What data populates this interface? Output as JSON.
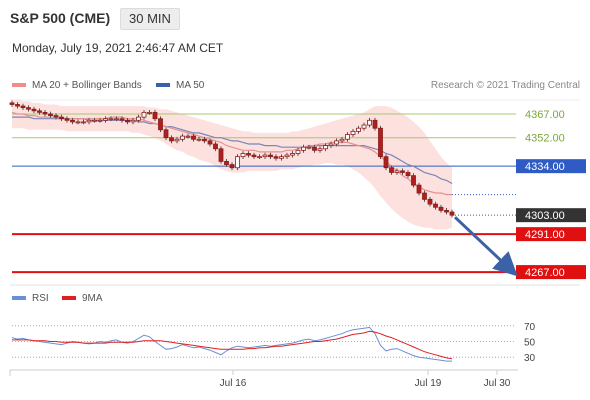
{
  "header": {
    "title": "S&P 500 (CME)",
    "timeframe": "30 MIN",
    "datetime": "Monday, July 19, 2021 2:46:47 AM CET"
  },
  "legend": {
    "ma20_label": "MA 20 + Bollinger Bands",
    "ma50_label": "MA 50",
    "ma20_color": "#f28c8c",
    "ma50_color": "#3b5fa8",
    "copyright": "Research © 2021 Trading Central"
  },
  "rsi_legend": {
    "rsi_label": "RSI",
    "ma9_label": "9MA",
    "rsi_color": "#6b8fd6",
    "ma9_color": "#e02020"
  },
  "chart_data": [
    {
      "type": "candlestick",
      "title": "S&P 500 (CME)",
      "ylim": [
        4262,
        4379
      ],
      "levels": [
        {
          "label": "4367.00",
          "value": 4367,
          "color": "#a8c870",
          "kind": "resistance"
        },
        {
          "label": "4352.00",
          "value": 4352,
          "color": "#a8c870",
          "kind": "resistance"
        },
        {
          "label": "4334.00",
          "value": 4334,
          "color": "#2e5cc4",
          "kind": "pivot"
        },
        {
          "label": "4303.00",
          "value": 4303,
          "color": "#333333",
          "kind": "last"
        },
        {
          "label": "4291.00",
          "value": 4291,
          "color": "#e01010",
          "kind": "support"
        },
        {
          "label": "4267.00",
          "value": 4267,
          "color": "#e01010",
          "kind": "support"
        }
      ],
      "closes": [
        4373,
        4372,
        4371,
        4370,
        4369,
        4368,
        4367,
        4366,
        4365,
        4364,
        4363,
        4362,
        4362,
        4362,
        4363,
        4363,
        4363,
        4364,
        4364,
        4364,
        4363,
        4362,
        4363,
        4365,
        4368,
        4368,
        4364,
        4357,
        4352,
        4350,
        4351,
        4353,
        4353,
        4351,
        4351,
        4350,
        4348,
        4345,
        4337,
        4335,
        4333,
        4340,
        4342,
        4341,
        4340,
        4340,
        4341,
        4340,
        4339,
        4340,
        4341,
        4342,
        4344,
        4346,
        4346,
        4344,
        4345,
        4347,
        4348,
        4350,
        4351,
        4354,
        4356,
        4358,
        4360,
        4363,
        4358,
        4340,
        4333,
        4330,
        4331,
        4330,
        4328,
        4322,
        4317,
        4313,
        4310,
        4308,
        4306,
        4305,
        4303
      ],
      "ma20": [
        4368,
        4367,
        4367,
        4366,
        4366,
        4365,
        4365,
        4365,
        4365,
        4365,
        4364,
        4364,
        4364,
        4364,
        4364,
        4364,
        4364,
        4364,
        4365,
        4365,
        4365,
        4364,
        4364,
        4364,
        4363,
        4362,
        4361,
        4360,
        4359,
        4358,
        4357,
        4356,
        4355,
        4354,
        4353,
        4352,
        4351,
        4350,
        4349,
        4347,
        4346,
        4345,
        4344,
        4344,
        4344,
        4343,
        4343,
        4343,
        4343,
        4343,
        4344,
        4344,
        4345,
        4346,
        4347,
        4347,
        4348,
        4348,
        4349,
        4349,
        4349,
        4349,
        4348,
        4347,
        4346,
        4345,
        4343,
        4340,
        4337,
        4334,
        4331,
        4328,
        4326,
        4323,
        4321,
        4319,
        4318,
        4317,
        4317,
        4316,
        4316
      ],
      "upper_band": [
        4376,
        4376,
        4375,
        4375,
        4374,
        4374,
        4373,
        4373,
        4373,
        4372,
        4372,
        4372,
        4372,
        4372,
        4372,
        4372,
        4372,
        4372,
        4372,
        4372,
        4372,
        4372,
        4372,
        4372,
        4372,
        4371,
        4371,
        4370,
        4370,
        4369,
        4368,
        4367,
        4366,
        4365,
        4364,
        4363,
        4362,
        4361,
        4360,
        4359,
        4358,
        4357,
        4356,
        4356,
        4355,
        4355,
        4355,
        4355,
        4355,
        4355,
        4355,
        4356,
        4356,
        4357,
        4358,
        4359,
        4360,
        4361,
        4362,
        4363,
        4364,
        4365,
        4366,
        4367,
        4368,
        4370,
        4372,
        4372,
        4372,
        4371,
        4369,
        4367,
        4365,
        4362,
        4359,
        4355,
        4350,
        4345,
        4340,
        4336,
        4333
      ],
      "lower_band": [
        4358,
        4358,
        4358,
        4357,
        4357,
        4357,
        4357,
        4357,
        4357,
        4357,
        4356,
        4356,
        4356,
        4356,
        4356,
        4356,
        4356,
        4356,
        4356,
        4356,
        4356,
        4356,
        4355,
        4355,
        4354,
        4353,
        4352,
        4350,
        4348,
        4346,
        4344,
        4343,
        4341,
        4340,
        4338,
        4337,
        4336,
        4334,
        4332,
        4331,
        4330,
        4330,
        4330,
        4331,
        4331,
        4331,
        4331,
        4331,
        4331,
        4332,
        4332,
        4332,
        4333,
        4334,
        4334,
        4335,
        4335,
        4336,
        4336,
        4335,
        4335,
        4334,
        4332,
        4330,
        4327,
        4324,
        4320,
        4315,
        4311,
        4307,
        4304,
        4301,
        4299,
        4297,
        4296,
        4295,
        4295,
        4294,
        4294,
        4294,
        4295
      ],
      "ma50": [
        4365,
        4365,
        4365,
        4365,
        4364,
        4364,
        4364,
        4364,
        4364,
        4364,
        4364,
        4364,
        4364,
        4364,
        4363,
        4363,
        4363,
        4363,
        4363,
        4363,
        4363,
        4363,
        4363,
        4362,
        4362,
        4361,
        4361,
        4360,
        4359,
        4359,
        4358,
        4357,
        4356,
        4355,
        4355,
        4354,
        4353,
        4352,
        4352,
        4351,
        4350,
        4350,
        4349,
        4348,
        4348,
        4348,
        4347,
        4347,
        4347,
        4346,
        4346,
        4346,
        4346,
        4346,
        4346,
        4347,
        4347,
        4347,
        4347,
        4347,
        4347,
        4347,
        4347,
        4347,
        4347,
        4346,
        4345,
        4344,
        4342,
        4341,
        4339,
        4337,
        4335,
        4334,
        4332,
        4330,
        4329,
        4328,
        4326,
        4325,
        4323
      ],
      "projection": {
        "from": 4303,
        "to": 4267
      }
    },
    {
      "type": "line",
      "title": "RSI",
      "ylim": [
        20,
        80
      ],
      "yticks": [
        70,
        50,
        30
      ],
      "x_labels": [
        "Jul 16",
        "Jul 19",
        "Jul 30"
      ],
      "series": [
        {
          "name": "RSI",
          "color": "#6b8fd6",
          "values": [
            55,
            53,
            54,
            52,
            51,
            50,
            49,
            48,
            47,
            46,
            48,
            50,
            49,
            48,
            47,
            48,
            50,
            49,
            51,
            52,
            49,
            48,
            50,
            54,
            58,
            56,
            50,
            45,
            40,
            41,
            43,
            46,
            44,
            42,
            43,
            41,
            39,
            36,
            33,
            38,
            42,
            44,
            43,
            42,
            43,
            44,
            45,
            44,
            45,
            46,
            47,
            48,
            50,
            52,
            53,
            51,
            52,
            54,
            56,
            58,
            60,
            63,
            65,
            66,
            67,
            68,
            60,
            45,
            38,
            40,
            41,
            38,
            35,
            32,
            30,
            29,
            28,
            27,
            26,
            25,
            25
          ]
        },
        {
          "name": "9MA",
          "color": "#e02020",
          "values": [
            52,
            52,
            52,
            52,
            51,
            51,
            51,
            50,
            50,
            49,
            49,
            49,
            49,
            48,
            48,
            48,
            48,
            48,
            49,
            49,
            49,
            49,
            49,
            50,
            51,
            51,
            51,
            51,
            50,
            49,
            48,
            47,
            46,
            45,
            44,
            43,
            42,
            41,
            40,
            40,
            40,
            40,
            40,
            41,
            41,
            42,
            42,
            43,
            44,
            44,
            45,
            46,
            47,
            48,
            49,
            50,
            50,
            51,
            52,
            53,
            55,
            57,
            59,
            60,
            61,
            63,
            62,
            60,
            57,
            55,
            52,
            49,
            46,
            43,
            40,
            37,
            35,
            33,
            31,
            29,
            28
          ]
        }
      ]
    }
  ],
  "axis_labels": {
    "price": [
      "4367.00",
      "4352.00",
      "4334.00",
      "4303.00",
      "4291.00",
      "4267.00"
    ],
    "rsi": [
      "70",
      "50",
      "30"
    ],
    "time": [
      "Jul 16",
      "Jul 19",
      "Jul 30"
    ]
  }
}
